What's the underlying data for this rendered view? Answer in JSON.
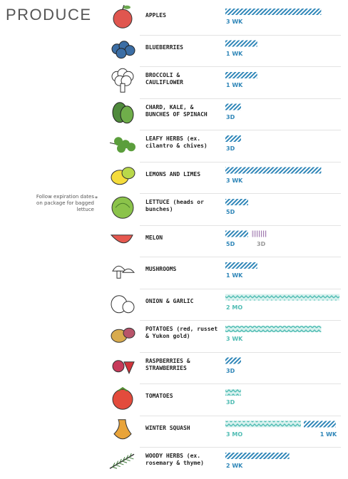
{
  "title": "PRODUCE",
  "note": "Follow expiration dates on package for bagged lettuce",
  "note_mark": "*",
  "colors": {
    "blue": "#2f86b8",
    "teal": "#4fbcb3",
    "purple": "#a07ab0",
    "note_gray": "#999999"
  },
  "chart_data": {
    "type": "bar",
    "unit": "days",
    "items": [
      {
        "label": "APPLES",
        "icon": "apple-icon",
        "segments": [
          {
            "label": "3 WK",
            "days": 21,
            "color": "blue"
          }
        ]
      },
      {
        "label": "BLUEBERRIES",
        "icon": "blueberries-icon",
        "segments": [
          {
            "label": "1 WK",
            "days": 7,
            "color": "blue"
          }
        ]
      },
      {
        "label": "BROCCOLI & CAULIFLOWER",
        "icon": "broccoli-icon",
        "segments": [
          {
            "label": "1 WK",
            "days": 7,
            "color": "blue"
          }
        ]
      },
      {
        "label": "CHARD, KALE, & BUNCHES OF SPINACH",
        "icon": "greens-icon",
        "segments": [
          {
            "label": "3D",
            "days": 3,
            "color": "blue"
          }
        ]
      },
      {
        "label": "LEAFY HERBS (ex. cilantro & chives)",
        "icon": "herbs-icon",
        "segments": [
          {
            "label": "3D",
            "days": 3,
            "color": "blue"
          }
        ]
      },
      {
        "label": "LEMONS AND LIMES",
        "icon": "lemon-icon",
        "segments": [
          {
            "label": "3 WK",
            "days": 21,
            "color": "blue"
          }
        ]
      },
      {
        "label": "LETTUCE (heads or bunches)",
        "icon": "lettuce-icon",
        "segments": [
          {
            "label": "5D",
            "days": 5,
            "color": "blue"
          }
        ]
      },
      {
        "label": "MELON",
        "icon": "melon-icon",
        "segments": [
          {
            "label": "5D",
            "days": 5,
            "color": "blue"
          },
          {
            "label": "3D",
            "days": 3,
            "color": "purple"
          }
        ]
      },
      {
        "label": "MUSHROOMS",
        "icon": "mushroom-icon",
        "segments": [
          {
            "label": "1 WK",
            "days": 7,
            "color": "blue"
          }
        ]
      },
      {
        "label": "ONION & GARLIC",
        "icon": "onion-icon",
        "segments": [
          {
            "label": "2 MO",
            "days": 60,
            "color": "teal"
          }
        ]
      },
      {
        "label": "POTATOES (red, russet & Yukon gold)",
        "icon": "potato-icon",
        "segments": [
          {
            "label": "3 WK",
            "days": 21,
            "color": "teal"
          }
        ]
      },
      {
        "label": "RASPBERRIES & STRAWBERRIES",
        "icon": "berries-icon",
        "segments": [
          {
            "label": "3D",
            "days": 3,
            "color": "blue"
          }
        ]
      },
      {
        "label": "TOMATOES",
        "icon": "tomato-icon",
        "segments": [
          {
            "label": "3D",
            "days": 3,
            "color": "teal"
          }
        ]
      },
      {
        "label": "WINTER SQUASH",
        "icon": "squash-icon",
        "segments": [
          {
            "label": "3 MO",
            "days": 90,
            "color": "teal"
          },
          {
            "label": "1 WK",
            "days": 7,
            "color": "blue"
          }
        ]
      },
      {
        "label": "WOODY HERBS (ex. rosemary & thyme)",
        "icon": "woody-herbs-icon",
        "segments": [
          {
            "label": "2 WK",
            "days": 14,
            "color": "blue"
          }
        ]
      }
    ]
  }
}
